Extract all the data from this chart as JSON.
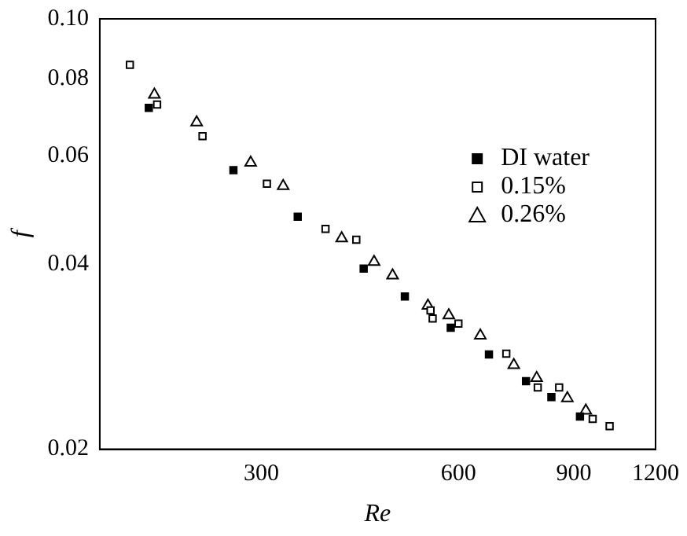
{
  "chart_data": {
    "type": "scatter",
    "xlabel": "Re",
    "ylabel": "f",
    "log": "xy",
    "xlim": [
      170,
      1200
    ],
    "ylim": [
      0.02,
      0.1
    ],
    "xticks": [
      300,
      600,
      900,
      1200
    ],
    "yticks": [
      0.02,
      0.04,
      0.06,
      0.08,
      {
        "value": 0.1,
        "label": "0.10"
      }
    ],
    "grid": false,
    "legend": "top right",
    "series": [
      {
        "name": "DI water",
        "color": "#000000",
        "marker": "square",
        "x": [
          202,
          272,
          341,
          430,
          497,
          584,
          668,
          761,
          832,
          920
        ],
        "values": [
          0.0717,
          0.0568,
          0.0477,
          0.0393,
          0.0354,
          0.0315,
          0.0285,
          0.0258,
          0.0243,
          0.0226
        ]
      },
      {
        "name": "0.15%",
        "color": "#000000",
        "marker": "square",
        "x": [
          189,
          208,
          244,
          306,
          376,
          419,
          544,
          548,
          600,
          710,
          793,
          855,
          962,
          1021
        ],
        "values": [
          0.0842,
          0.0726,
          0.0645,
          0.054,
          0.0456,
          0.0438,
          0.0336,
          0.0326,
          0.032,
          0.0286,
          0.0252,
          0.0252,
          0.0224,
          0.0218
        ]
      },
      {
        "name": "0.26%",
        "color": "#000000",
        "marker": "triangle",
        "x": [
          206,
          239,
          289,
          324,
          398,
          446,
          476,
          539,
          580,
          648,
          729,
          790,
          880,
          939
        ],
        "values": [
          0.0753,
          0.0679,
          0.0584,
          0.0535,
          0.044,
          0.0403,
          0.0383,
          0.0342,
          0.033,
          0.0306,
          0.0274,
          0.0261,
          0.0242,
          0.0231
        ]
      }
    ]
  }
}
